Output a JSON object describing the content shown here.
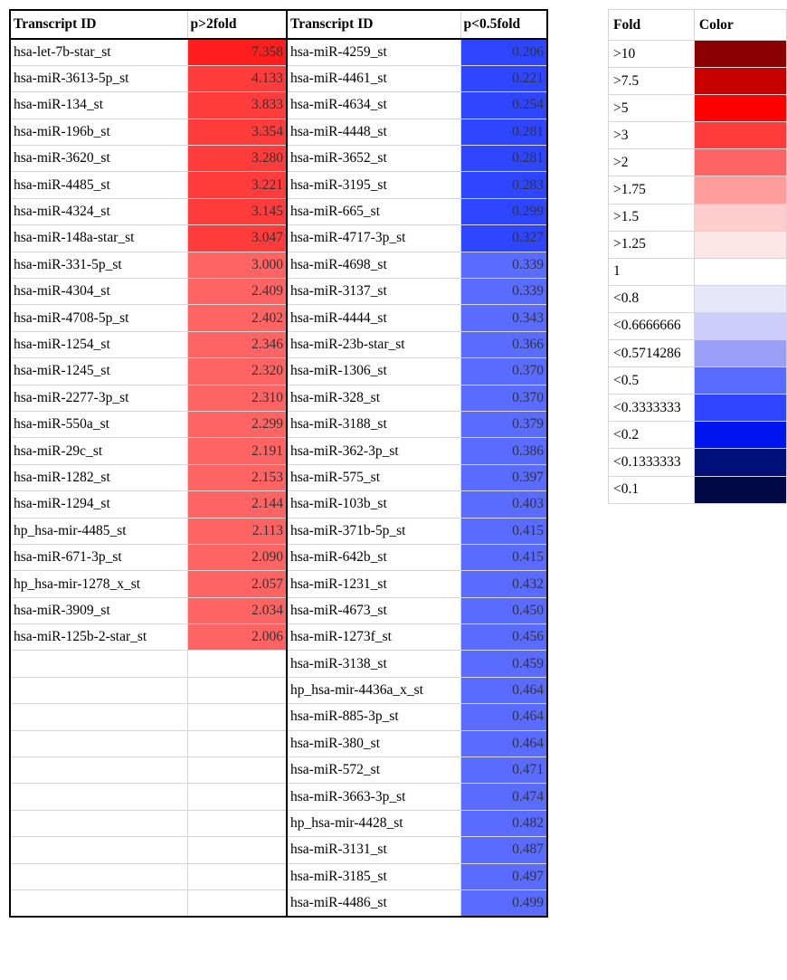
{
  "main_table": {
    "headers": [
      "Transcript ID",
      "p>2fold",
      "Transcript ID",
      "p<0.5fold"
    ],
    "up": [
      {
        "id": "hsa-let-7b-star_st",
        "value": "7.358",
        "color": "#ff1e1e"
      },
      {
        "id": "hsa-miR-3613-5p_st",
        "value": "4.133",
        "color": "#ff3c3c"
      },
      {
        "id": "hsa-miR-134_st",
        "value": "3.833",
        "color": "#ff3c3c"
      },
      {
        "id": "hsa-miR-196b_st",
        "value": "3.354",
        "color": "#ff3c3c"
      },
      {
        "id": "hsa-miR-3620_st",
        "value": "3.280",
        "color": "#ff3c3c"
      },
      {
        "id": "hsa-miR-4485_st",
        "value": "3.221",
        "color": "#ff3c3c"
      },
      {
        "id": "hsa-miR-4324_st",
        "value": "3.145",
        "color": "#ff3c3c"
      },
      {
        "id": "hsa-miR-148a-star_st",
        "value": "3.047",
        "color": "#ff3c3c"
      },
      {
        "id": "hsa-miR-331-5p_st",
        "value": "3.000",
        "color": "#ff6464"
      },
      {
        "id": "hsa-miR-4304_st",
        "value": "2.409",
        "color": "#ff6464"
      },
      {
        "id": "hsa-miR-4708-5p_st",
        "value": "2.402",
        "color": "#ff6464"
      },
      {
        "id": "hsa-miR-1254_st",
        "value": "2.346",
        "color": "#ff6464"
      },
      {
        "id": "hsa-miR-1245_st",
        "value": "2.320",
        "color": "#ff6464"
      },
      {
        "id": "hsa-miR-2277-3p_st",
        "value": "2.310",
        "color": "#ff6464"
      },
      {
        "id": "hsa-miR-550a_st",
        "value": "2.299",
        "color": "#ff6464"
      },
      {
        "id": "hsa-miR-29c_st",
        "value": "2.191",
        "color": "#ff6464"
      },
      {
        "id": "hsa-miR-1282_st",
        "value": "2.153",
        "color": "#ff6464"
      },
      {
        "id": "hsa-miR-1294_st",
        "value": "2.144",
        "color": "#ff6464"
      },
      {
        "id": "hp_hsa-mir-4485_st",
        "value": "2.113",
        "color": "#ff6464"
      },
      {
        "id": "hsa-miR-671-3p_st",
        "value": "2.090",
        "color": "#ff6464"
      },
      {
        "id": "hp_hsa-mir-1278_x_st",
        "value": "2.057",
        "color": "#ff6464"
      },
      {
        "id": "hsa-miR-3909_st",
        "value": "2.034",
        "color": "#ff6464"
      },
      {
        "id": "hsa-miR-125b-2-star_st",
        "value": "2.006",
        "color": "#ff6464"
      }
    ],
    "down": [
      {
        "id": "hsa-miR-4259_st",
        "value": "0.206",
        "color": "#2e46ff"
      },
      {
        "id": "hsa-miR-4461_st",
        "value": "0.221",
        "color": "#2e46ff"
      },
      {
        "id": "hsa-miR-4634_st",
        "value": "0.254",
        "color": "#2e46ff"
      },
      {
        "id": "hsa-miR-4448_st",
        "value": "0.281",
        "color": "#2e46ff"
      },
      {
        "id": "hsa-miR-3652_st",
        "value": "0.281",
        "color": "#2e46ff"
      },
      {
        "id": "hsa-miR-3195_st",
        "value": "0.283",
        "color": "#2e46ff"
      },
      {
        "id": "hsa-miR-665_st",
        "value": "0.299",
        "color": "#2e46ff"
      },
      {
        "id": "hsa-miR-4717-3p_st",
        "value": "0.327",
        "color": "#2e46ff"
      },
      {
        "id": "hsa-miR-4698_st",
        "value": "0.339",
        "color": "#5a6cff"
      },
      {
        "id": "hsa-miR-3137_st",
        "value": "0.339",
        "color": "#5a6cff"
      },
      {
        "id": "hsa-miR-4444_st",
        "value": "0.343",
        "color": "#5a6cff"
      },
      {
        "id": "hsa-miR-23b-star_st",
        "value": "0.366",
        "color": "#5a6cff"
      },
      {
        "id": "hsa-miR-1306_st",
        "value": "0.370",
        "color": "#5a6cff"
      },
      {
        "id": "hsa-miR-328_st",
        "value": "0.370",
        "color": "#5a6cff"
      },
      {
        "id": "hsa-miR-3188_st",
        "value": "0.379",
        "color": "#5a6cff"
      },
      {
        "id": "hsa-miR-362-3p_st",
        "value": "0.386",
        "color": "#5a6cff"
      },
      {
        "id": "hsa-miR-575_st",
        "value": "0.397",
        "color": "#5a6cff"
      },
      {
        "id": "hsa-miR-103b_st",
        "value": "0.403",
        "color": "#5a6cff"
      },
      {
        "id": "hsa-miR-371b-5p_st",
        "value": "0.415",
        "color": "#5a6cff"
      },
      {
        "id": "hsa-miR-642b_st",
        "value": "0.415",
        "color": "#5a6cff"
      },
      {
        "id": "hsa-miR-1231_st",
        "value": "0.432",
        "color": "#5a6cff"
      },
      {
        "id": "hsa-miR-4673_st",
        "value": "0.450",
        "color": "#5a6cff"
      },
      {
        "id": "hsa-miR-1273f_st",
        "value": "0.456",
        "color": "#5a6cff"
      },
      {
        "id": "hsa-miR-3138_st",
        "value": "0.459",
        "color": "#5a6cff"
      },
      {
        "id": "hp_hsa-mir-4436a_x_st",
        "value": "0.464",
        "color": "#5a6cff"
      },
      {
        "id": "hsa-miR-885-3p_st",
        "value": "0.464",
        "color": "#5a6cff"
      },
      {
        "id": "hsa-miR-380_st",
        "value": "0.464",
        "color": "#5a6cff"
      },
      {
        "id": "hsa-miR-572_st",
        "value": "0.471",
        "color": "#5a6cff"
      },
      {
        "id": "hsa-miR-3663-3p_st",
        "value": "0.474",
        "color": "#5a6cff"
      },
      {
        "id": "hp_hsa-mir-4428_st",
        "value": "0.482",
        "color": "#5a6cff"
      },
      {
        "id": "hsa-miR-3131_st",
        "value": "0.487",
        "color": "#5a6cff"
      },
      {
        "id": "hsa-miR-3185_st",
        "value": "0.497",
        "color": "#5a6cff"
      },
      {
        "id": "hsa-miR-4486_st",
        "value": "0.499",
        "color": "#5a6cff"
      }
    ]
  },
  "legend": {
    "headers": [
      "Fold",
      "Color"
    ],
    "rows": [
      {
        "label": ">10",
        "color": "#8b0000"
      },
      {
        "label": ">7.5",
        "color": "#c80000"
      },
      {
        "label": ">5",
        "color": "#ff0000"
      },
      {
        "label": ">3",
        "color": "#ff3c3c"
      },
      {
        "label": ">2",
        "color": "#ff6464"
      },
      {
        "label": ">1.75",
        "color": "#ff9c9c"
      },
      {
        "label": ">1.5",
        "color": "#ffcccc"
      },
      {
        "label": ">1.25",
        "color": "#ffe6e6"
      },
      {
        "label": "1",
        "color": "#ffffff"
      },
      {
        "label": "<0.8",
        "color": "#e6e6fa"
      },
      {
        "label": "<0.6666666",
        "color": "#cccdfa"
      },
      {
        "label": "<0.5714286",
        "color": "#9aa0f8"
      },
      {
        "label": "<0.5",
        "color": "#5a6cff"
      },
      {
        "label": "<0.3333333",
        "color": "#2e46ff"
      },
      {
        "label": "<0.2",
        "color": "#0014ee"
      },
      {
        "label": "<0.1333333",
        "color": "#00107a"
      },
      {
        "label": "<0.1",
        "color": "#000845"
      }
    ]
  }
}
